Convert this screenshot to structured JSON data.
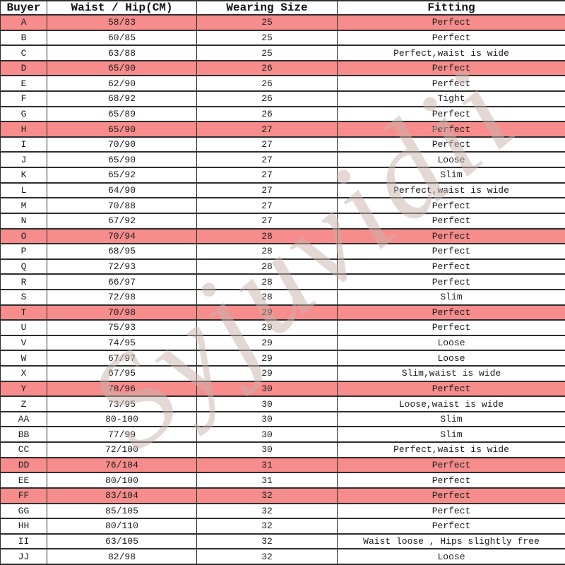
{
  "watermark": {
    "text": "Syjuvidii",
    "color": "#CBB3AD"
  },
  "colors": {
    "highlight": "#F68C8C",
    "border": "#2E2E2E",
    "text": "#1C1C1C"
  },
  "table": {
    "columns": [
      {
        "key": "buyer",
        "label": "Buyer"
      },
      {
        "key": "waist_hip",
        "label": "Waist / Hip(CM)"
      },
      {
        "key": "size",
        "label": "Wearing Size"
      },
      {
        "key": "fitting",
        "label": "Fitting"
      }
    ],
    "rows": [
      {
        "buyer": "A",
        "waist_hip": "58/83",
        "size": "25",
        "fitting": "Perfect",
        "highlighted": true
      },
      {
        "buyer": "B",
        "waist_hip": "60/85",
        "size": "25",
        "fitting": "Perfect",
        "highlighted": false
      },
      {
        "buyer": "C",
        "waist_hip": "63/88",
        "size": "25",
        "fitting": "Perfect,waist is wide",
        "highlighted": false
      },
      {
        "buyer": "D",
        "waist_hip": "65/90",
        "size": "26",
        "fitting": "Perfect",
        "highlighted": true
      },
      {
        "buyer": "E",
        "waist_hip": "62/90",
        "size": "26",
        "fitting": "Perfect",
        "highlighted": false
      },
      {
        "buyer": "F",
        "waist_hip": "68/92",
        "size": "26",
        "fitting": "Tight",
        "highlighted": false
      },
      {
        "buyer": "G",
        "waist_hip": "65/89",
        "size": "26",
        "fitting": "Perfect",
        "highlighted": false
      },
      {
        "buyer": "H",
        "waist_hip": "65/90",
        "size": "27",
        "fitting": "Perfect",
        "highlighted": true
      },
      {
        "buyer": "I",
        "waist_hip": "70/90",
        "size": "27",
        "fitting": "Perfect",
        "highlighted": false
      },
      {
        "buyer": "J",
        "waist_hip": "65/90",
        "size": "27",
        "fitting": "Loose",
        "highlighted": false
      },
      {
        "buyer": "K",
        "waist_hip": "65/92",
        "size": "27",
        "fitting": "Slim",
        "highlighted": false
      },
      {
        "buyer": "L",
        "waist_hip": "64/90",
        "size": "27",
        "fitting": "Perfect,waist is wide",
        "highlighted": false
      },
      {
        "buyer": "M",
        "waist_hip": "70/88",
        "size": "27",
        "fitting": "Perfect",
        "highlighted": false
      },
      {
        "buyer": "N",
        "waist_hip": "67/92",
        "size": "27",
        "fitting": "Perfect",
        "highlighted": false
      },
      {
        "buyer": "O",
        "waist_hip": "70/94",
        "size": "28",
        "fitting": "Perfect",
        "highlighted": true
      },
      {
        "buyer": "P",
        "waist_hip": "68/95",
        "size": "28",
        "fitting": "Perfect",
        "highlighted": false
      },
      {
        "buyer": "Q",
        "waist_hip": "72/93",
        "size": "28",
        "fitting": "Perfect",
        "highlighted": false
      },
      {
        "buyer": "R",
        "waist_hip": "66/97",
        "size": "28",
        "fitting": "Perfect",
        "highlighted": false
      },
      {
        "buyer": "S",
        "waist_hip": "72/98",
        "size": "28",
        "fitting": "Slim",
        "highlighted": false
      },
      {
        "buyer": "T",
        "waist_hip": "70/98",
        "size": "29",
        "fitting": "Perfect",
        "highlighted": true
      },
      {
        "buyer": "U",
        "waist_hip": "75/93",
        "size": "29",
        "fitting": "Perfect",
        "highlighted": false
      },
      {
        "buyer": "V",
        "waist_hip": "74/95",
        "size": "29",
        "fitting": "Loose",
        "highlighted": false
      },
      {
        "buyer": "W",
        "waist_hip": "67/97",
        "size": "29",
        "fitting": "Loose",
        "highlighted": false
      },
      {
        "buyer": "X",
        "waist_hip": "67/95",
        "size": "29",
        "fitting": "Slim,waist is wide",
        "highlighted": false
      },
      {
        "buyer": "Y",
        "waist_hip": "78/96",
        "size": "30",
        "fitting": "Perfect",
        "highlighted": true
      },
      {
        "buyer": "Z",
        "waist_hip": "73/95",
        "size": "30",
        "fitting": "Loose,waist is wide",
        "highlighted": false
      },
      {
        "buyer": "AA",
        "waist_hip": "80-100",
        "size": "30",
        "fitting": "Slim",
        "highlighted": false
      },
      {
        "buyer": "BB",
        "waist_hip": "77/99",
        "size": "30",
        "fitting": "Slim",
        "highlighted": false
      },
      {
        "buyer": "CC",
        "waist_hip": "72/100",
        "size": "30",
        "fitting": "Perfect,waist is wide",
        "highlighted": false
      },
      {
        "buyer": "DD",
        "waist_hip": "76/104",
        "size": "31",
        "fitting": "Perfect",
        "highlighted": true
      },
      {
        "buyer": "EE",
        "waist_hip": "80/100",
        "size": "31",
        "fitting": "Perfect",
        "highlighted": false
      },
      {
        "buyer": "FF",
        "waist_hip": "83/104",
        "size": "32",
        "fitting": "Perfect",
        "highlighted": true
      },
      {
        "buyer": "GG",
        "waist_hip": "85/105",
        "size": "32",
        "fitting": "Perfect",
        "highlighted": false
      },
      {
        "buyer": "HH",
        "waist_hip": "80/110",
        "size": "32",
        "fitting": "Perfect",
        "highlighted": false
      },
      {
        "buyer": "II",
        "waist_hip": "63/105",
        "size": "32",
        "fitting": "Waist loose , Hips slightly free",
        "highlighted": false
      },
      {
        "buyer": "JJ",
        "waist_hip": "82/98",
        "size": "32",
        "fitting": "Loose",
        "highlighted": false
      }
    ]
  }
}
